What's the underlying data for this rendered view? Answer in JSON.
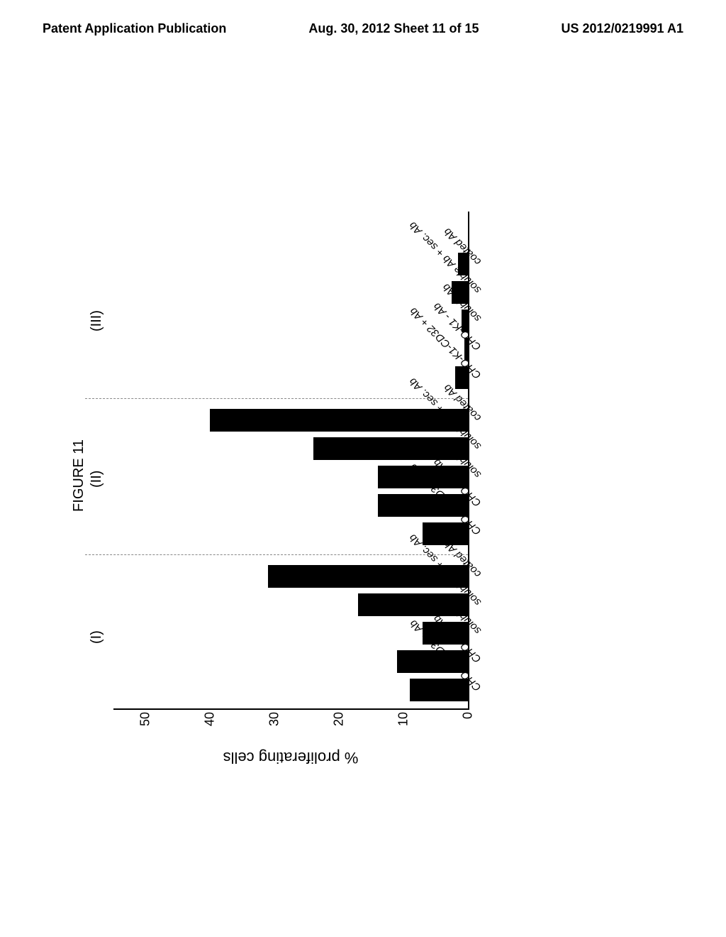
{
  "header": {
    "left": "Patent Application Publication",
    "center": "Aug. 30, 2012  Sheet 11 of 15",
    "right": "US 2012/0219991 A1"
  },
  "figure": {
    "title": "FIGURE 11",
    "type": "bar",
    "y_axis_label": "% proliferating cells",
    "y_ticks": [
      0,
      10,
      20,
      30,
      40,
      50
    ],
    "ylim": [
      0,
      55
    ],
    "bar_color": "#000000",
    "background_color": "#ffffff",
    "axis_color": "#000000",
    "title_fontsize": 20,
    "label_fontsize": 18,
    "x_label_fontsize": 15,
    "groups": [
      {
        "label": "(I)"
      },
      {
        "label": "(II)"
      },
      {
        "label": "(III)"
      }
    ],
    "bars": [
      {
        "label": "CHO-K1-CD32 + Ab",
        "value": 9,
        "group": 0
      },
      {
        "label": "CHO-K1 - Ab",
        "value": 11,
        "group": 0
      },
      {
        "label": "soluble Ab",
        "value": 7,
        "group": 0
      },
      {
        "label": "soluble Ab + sec. Ab",
        "value": 17,
        "group": 0
      },
      {
        "label": "coated Ab",
        "value": 31,
        "group": 0
      },
      {
        "label": "CHO-K1-CD32 + Ab",
        "value": 7,
        "group": 1
      },
      {
        "label": "CHO-K1 - Ab",
        "value": 14,
        "group": 1
      },
      {
        "label": "soluble Ab",
        "value": 14,
        "group": 1
      },
      {
        "label": "soluble Ab + sec. Ab",
        "value": 24,
        "group": 1
      },
      {
        "label": "coated Ab",
        "value": 40,
        "group": 1
      },
      {
        "label": "CHO-K1-CD32 + Ab",
        "value": 2,
        "group": 2
      },
      {
        "label": "CHO-K1 - Ab",
        "value": 0.5,
        "group": 2
      },
      {
        "label": "soluble Ab",
        "value": 1,
        "group": 2
      },
      {
        "label": "soluble Ab + sec. Ab",
        "value": 2.5,
        "group": 2
      },
      {
        "label": "coated Ab",
        "value": 1.5,
        "group": 2
      }
    ]
  }
}
